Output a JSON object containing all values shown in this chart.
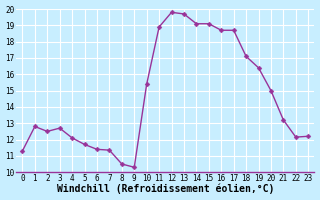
{
  "x": [
    0,
    1,
    2,
    3,
    4,
    5,
    6,
    7,
    8,
    9,
    10,
    11,
    12,
    13,
    14,
    15,
    16,
    17,
    18,
    19,
    20,
    21,
    22,
    23
  ],
  "y": [
    11.3,
    12.8,
    12.5,
    12.7,
    12.1,
    11.7,
    11.4,
    11.35,
    10.5,
    10.3,
    15.4,
    18.9,
    19.8,
    19.7,
    19.1,
    19.1,
    18.7,
    18.7,
    17.1,
    16.4,
    15.0,
    13.2,
    12.15,
    12.2
  ],
  "line_color": "#993399",
  "marker_color": "#993399",
  "bg_color": "#c8eeff",
  "grid_color": "#ffffff",
  "xlabel": "Windchill (Refroidissement éolien,°C)",
  "ylim": [
    10,
    20
  ],
  "xlim_min": -0.5,
  "xlim_max": 23.5,
  "yticks": [
    10,
    11,
    12,
    13,
    14,
    15,
    16,
    17,
    18,
    19,
    20
  ],
  "xticks": [
    0,
    1,
    2,
    3,
    4,
    5,
    6,
    7,
    8,
    9,
    10,
    11,
    12,
    13,
    14,
    15,
    16,
    17,
    18,
    19,
    20,
    21,
    22,
    23
  ],
  "tick_fontsize": 5.5,
  "xlabel_fontsize": 7,
  "line_width": 1.0,
  "marker_size": 2.5,
  "spine_color": "#993399"
}
